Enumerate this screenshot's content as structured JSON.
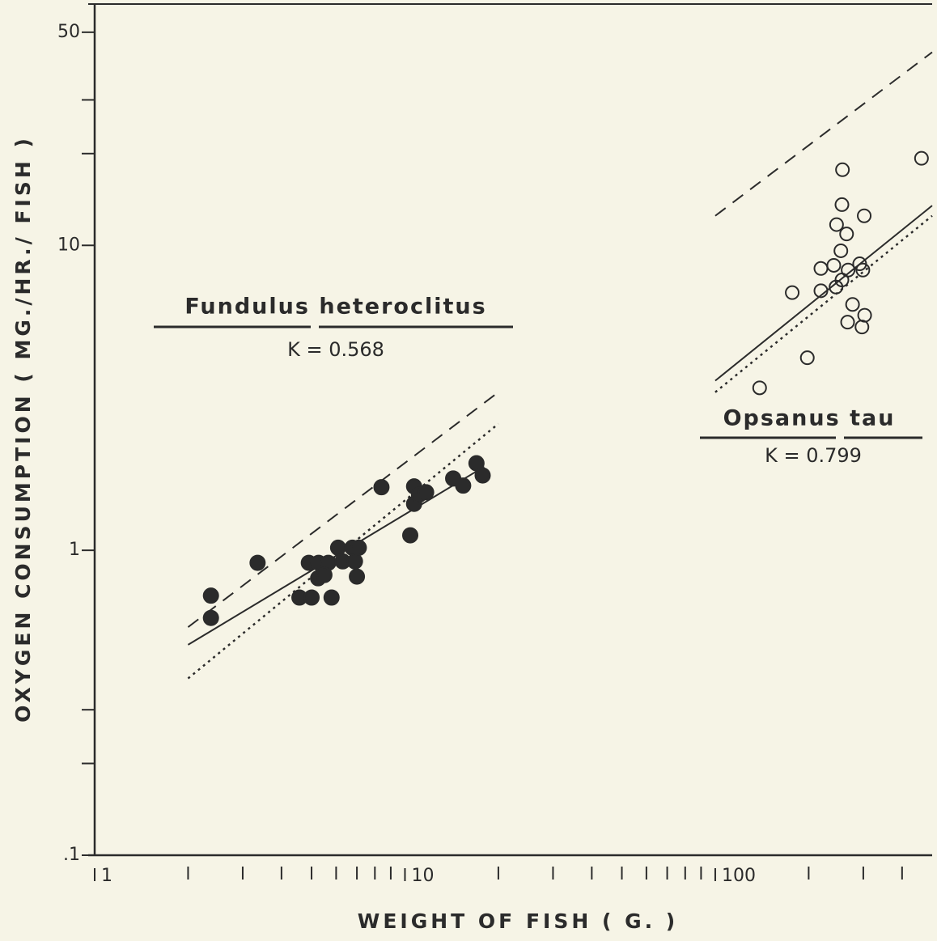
{
  "chart_data": {
    "type": "scatter",
    "x_label": "WEIGHT OF FISH ( G. )",
    "y_label": "OXYGEN CONSUMPTION ( MG./HR./ FISH )",
    "x_scale": "log",
    "y_scale": "log",
    "xlim": [
      1,
      500
    ],
    "ylim": [
      0.1,
      60
    ],
    "xticks": [
      1,
      10,
      100
    ],
    "xminor_ticks": [
      2,
      3,
      4,
      5,
      6,
      7,
      8,
      9,
      20,
      30,
      40,
      50,
      60,
      70,
      80,
      90,
      200,
      300,
      400
    ],
    "yticks": [
      {
        "value": 0.1,
        "label": ".1"
      },
      1,
      10,
      50
    ],
    "yminor_ticks": [
      0.2,
      0.3,
      20,
      30
    ],
    "color": "#2b2b2b",
    "series": [
      {
        "name": "Fundulus heteroclitus",
        "k_label": "K = 0.568",
        "marker": "filled",
        "x": [
          2.37,
          2.37,
          3.35,
          4.57,
          5.0,
          4.9,
          5.27,
          5.66,
          5.25,
          5.5,
          5.8,
          6.09,
          6.3,
          6.77,
          6.9,
          7.1,
          7.0,
          8.4,
          10.4,
          10.7,
          10.7,
          11.1,
          11.7,
          14.3,
          15.4,
          17.0,
          17.8
        ],
        "values": [
          0.71,
          0.6,
          0.91,
          0.7,
          0.7,
          0.91,
          0.91,
          0.91,
          0.81,
          0.83,
          0.7,
          1.02,
          0.92,
          1.02,
          0.92,
          1.02,
          0.82,
          1.61,
          1.12,
          1.62,
          1.42,
          1.52,
          1.55,
          1.72,
          1.63,
          1.93,
          1.76
        ],
        "fits": [
          {
            "style": "solid",
            "x": [
              2,
              18
            ],
            "values": [
              0.49,
              1.88
            ]
          },
          {
            "style": "dashed",
            "x": [
              2,
              20
            ],
            "values": [
              0.56,
              3.3
            ]
          },
          {
            "style": "dotted",
            "x": [
              2,
              20
            ],
            "values": [
              0.38,
              2.6
            ]
          }
        ]
      },
      {
        "name": "Opsanus tau",
        "k_label": "K = 0.799",
        "marker": "open",
        "x": [
          139,
          177,
          198,
          219,
          219,
          241,
          246,
          245,
          256,
          257,
          254,
          256,
          265,
          268,
          267,
          277,
          292,
          297,
          299,
          303,
          302,
          462
        ],
        "values": [
          3.41,
          7.0,
          4.28,
          8.4,
          7.1,
          8.6,
          11.7,
          7.3,
          13.6,
          17.7,
          9.6,
          7.7,
          10.9,
          8.3,
          5.6,
          6.4,
          8.7,
          5.4,
          8.3,
          5.9,
          12.5,
          19.3
        ],
        "fits": [
          {
            "style": "solid",
            "x": [
              100,
              500
            ],
            "values": [
              3.6,
              13.5
            ]
          },
          {
            "style": "dotted",
            "x": [
              100,
              500
            ],
            "values": [
              3.3,
              12.5
            ]
          },
          {
            "style": "dashed",
            "x": [
              100,
              500
            ],
            "values": [
              12.5,
              43
            ]
          }
        ]
      }
    ]
  }
}
